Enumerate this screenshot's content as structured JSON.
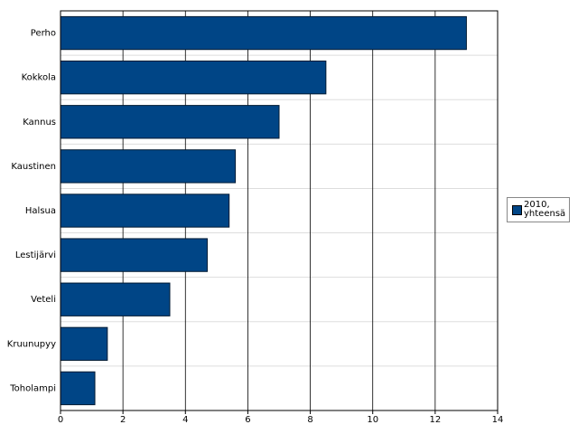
{
  "chart_data": {
    "type": "hbar",
    "categories": [
      "Perho",
      "Kokkola",
      "Kannus",
      "Kaustinen",
      "Halsua",
      "Lestijärvi",
      "Veteli",
      "Kruunupyy",
      "Toholampi"
    ],
    "series": [
      {
        "name": "2010, yhteensä",
        "color": "#004586",
        "values": [
          13,
          8.5,
          7,
          5.6,
          5.4,
          4.7,
          3.5,
          1.5,
          1.1
        ]
      }
    ],
    "xlim": [
      0,
      14
    ],
    "xticks": [
      0,
      2,
      4,
      6,
      8,
      10,
      12,
      14
    ],
    "grid": true,
    "legend": "right"
  }
}
